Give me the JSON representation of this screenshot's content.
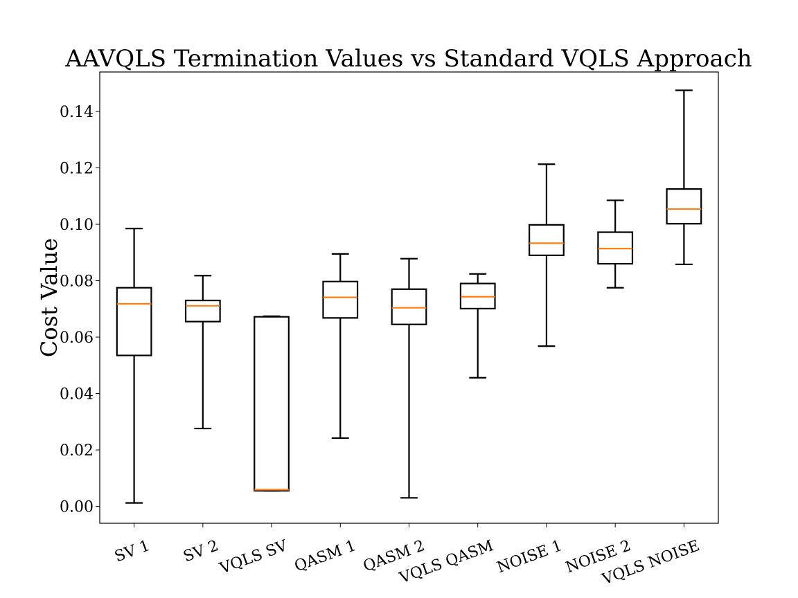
{
  "chart_data": {
    "type": "boxplot",
    "title": "AAVQLS Termination Values vs Standard VQLS Approach",
    "xlabel": "",
    "ylabel": "Cost Value",
    "ylim": [
      -0.006,
      0.154
    ],
    "yticks": [
      0.0,
      0.02,
      0.04,
      0.06,
      0.08,
      0.1,
      0.12,
      0.14
    ],
    "ytick_labels": [
      "0.00",
      "0.02",
      "0.04",
      "0.06",
      "0.08",
      "0.10",
      "0.12",
      "0.14"
    ],
    "categories": [
      "SV 1",
      "SV 2",
      "VQLS SV",
      "QASM 1",
      "QASM 2",
      "VQLS QASM",
      "NOISE 1",
      "NOISE 2",
      "VQLS NOISE"
    ],
    "boxes": [
      {
        "label": "SV 1",
        "whislo": 0.0012,
        "q1": 0.0535,
        "med": 0.0718,
        "q3": 0.0775,
        "whishi": 0.0985
      },
      {
        "label": "SV 2",
        "whislo": 0.0276,
        "q1": 0.0655,
        "med": 0.0711,
        "q3": 0.073,
        "whishi": 0.0818
      },
      {
        "label": "VQLS SV",
        "whislo": 0.0055,
        "q1": 0.0055,
        "med": 0.0059,
        "q3": 0.0672,
        "whishi": 0.0674
      },
      {
        "label": "QASM 1",
        "whislo": 0.0242,
        "q1": 0.0668,
        "med": 0.0741,
        "q3": 0.0797,
        "whishi": 0.0895
      },
      {
        "label": "QASM 2",
        "whislo": 0.003,
        "q1": 0.0645,
        "med": 0.0704,
        "q3": 0.077,
        "whishi": 0.0878
      },
      {
        "label": "VQLS QASM",
        "whislo": 0.0456,
        "q1": 0.0701,
        "med": 0.0743,
        "q3": 0.079,
        "whishi": 0.0824
      },
      {
        "label": "NOISE 1",
        "whislo": 0.0568,
        "q1": 0.089,
        "med": 0.0933,
        "q3": 0.0998,
        "whishi": 0.1213
      },
      {
        "label": "NOISE 2",
        "whislo": 0.0775,
        "q1": 0.086,
        "med": 0.0914,
        "q3": 0.0972,
        "whishi": 0.1085
      },
      {
        "label": "VQLS NOISE",
        "whislo": 0.0858,
        "q1": 0.1002,
        "med": 0.1054,
        "q3": 0.1125,
        "whishi": 0.1475
      }
    ],
    "colors": {
      "box": "#000000",
      "median": "#ff7f0e",
      "background": "#ffffff"
    }
  }
}
